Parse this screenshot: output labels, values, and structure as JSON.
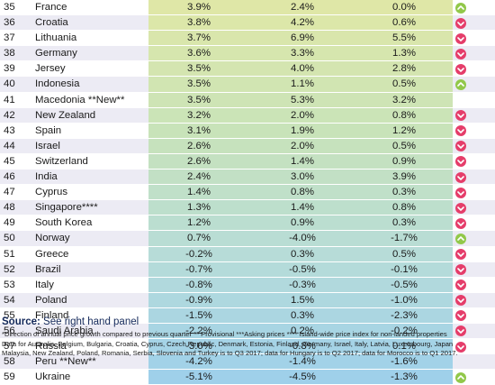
{
  "colors": {
    "up": "#92c84a",
    "down": "#e53d6a",
    "band_top": "#dfe7a7",
    "band_mid": "#c8e3b9",
    "band_low": "#b7dcd8",
    "band_bottom": "#9fd0ea"
  },
  "rows": [
    {
      "rank": "35",
      "country": "France",
      "annual": "3.9%",
      "annual_value": 3.9,
      "quarterly": "2.4%",
      "prev_year": "0.0%",
      "direction": "up"
    },
    {
      "rank": "36",
      "country": "Croatia",
      "annual": "3.8%",
      "annual_value": 3.8,
      "quarterly": "4.2%",
      "prev_year": "0.6%",
      "direction": "down"
    },
    {
      "rank": "37",
      "country": "Lithuania",
      "annual": "3.7%",
      "annual_value": 3.7,
      "quarterly": "6.9%",
      "prev_year": "5.5%",
      "direction": "down"
    },
    {
      "rank": "38",
      "country": "Germany",
      "annual": "3.6%",
      "annual_value": 3.6,
      "quarterly": "3.3%",
      "prev_year": "1.3%",
      "direction": "down"
    },
    {
      "rank": "39",
      "country": "Jersey",
      "annual": "3.5%",
      "annual_value": 3.5,
      "quarterly": "4.0%",
      "prev_year": "2.8%",
      "direction": "down"
    },
    {
      "rank": "40",
      "country": "Indonesia",
      "annual": "3.5%",
      "annual_value": 3.5,
      "quarterly": "1.1%",
      "prev_year": "0.5%",
      "direction": "up"
    },
    {
      "rank": "41",
      "country": "Macedonia **New**",
      "annual": "3.5%",
      "annual_value": 3.5,
      "quarterly": "5.3%",
      "prev_year": "3.2%",
      "direction": ""
    },
    {
      "rank": "42",
      "country": "New Zealand",
      "annual": "3.2%",
      "annual_value": 3.2,
      "quarterly": "2.0%",
      "prev_year": "0.8%",
      "direction": "down"
    },
    {
      "rank": "43",
      "country": "Spain",
      "annual": "3.1%",
      "annual_value": 3.1,
      "quarterly": "1.9%",
      "prev_year": "1.2%",
      "direction": "down"
    },
    {
      "rank": "44",
      "country": "Israel",
      "annual": "2.6%",
      "annual_value": 2.6,
      "quarterly": "2.0%",
      "prev_year": "0.5%",
      "direction": "down"
    },
    {
      "rank": "45",
      "country": "Switzerland",
      "annual": "2.6%",
      "annual_value": 2.6,
      "quarterly": "1.4%",
      "prev_year": "0.9%",
      "direction": "down"
    },
    {
      "rank": "46",
      "country": "India",
      "annual": "2.4%",
      "annual_value": 2.4,
      "quarterly": "3.0%",
      "prev_year": "3.9%",
      "direction": "down"
    },
    {
      "rank": "47",
      "country": "Cyprus",
      "annual": "1.4%",
      "annual_value": 1.4,
      "quarterly": "0.8%",
      "prev_year": "0.3%",
      "direction": "down"
    },
    {
      "rank": "48",
      "country": "Singapore****",
      "annual": "1.3%",
      "annual_value": 1.3,
      "quarterly": "1.4%",
      "prev_year": "0.8%",
      "direction": "down"
    },
    {
      "rank": "49",
      "country": "South Korea",
      "annual": "1.2%",
      "annual_value": 1.2,
      "quarterly": "0.9%",
      "prev_year": "0.3%",
      "direction": "down"
    },
    {
      "rank": "50",
      "country": "Norway",
      "annual": "0.7%",
      "annual_value": 0.7,
      "quarterly": "-4.0%",
      "prev_year": "-1.7%",
      "direction": "up"
    },
    {
      "rank": "51",
      "country": "Greece",
      "annual": "-0.2%",
      "annual_value": -0.2,
      "quarterly": "0.3%",
      "prev_year": "0.5%",
      "direction": "down"
    },
    {
      "rank": "52",
      "country": "Brazil",
      "annual": "-0.7%",
      "annual_value": -0.7,
      "quarterly": "-0.5%",
      "prev_year": "-0.1%",
      "direction": "down"
    },
    {
      "rank": "53",
      "country": "Italy",
      "annual": "-0.8%",
      "annual_value": -0.8,
      "quarterly": "-0.3%",
      "prev_year": "-0.5%",
      "direction": "down"
    },
    {
      "rank": "54",
      "country": "Poland",
      "annual": "-0.9%",
      "annual_value": -0.9,
      "quarterly": "1.5%",
      "prev_year": "-1.0%",
      "direction": "down"
    },
    {
      "rank": "55",
      "country": "Finland",
      "annual": "-1.5%",
      "annual_value": -1.5,
      "quarterly": "0.3%",
      "prev_year": "-2.3%",
      "direction": "down"
    },
    {
      "rank": "56",
      "country": "Saudi Arabia",
      "annual": "-2.2%",
      "annual_value": -2.2,
      "quarterly": "0.2%",
      "prev_year": "-0.2%",
      "direction": "down"
    },
    {
      "rank": "57",
      "country": "Russia",
      "annual": "-3.0%",
      "annual_value": -3.0,
      "quarterly": "-0.8%",
      "prev_year": "0.1%",
      "direction": "down"
    },
    {
      "rank": "58",
      "country": "Peru **New**",
      "annual": "-4.2%",
      "annual_value": -4.2,
      "quarterly": "-1.4%",
      "prev_year": "-1.6%",
      "direction": ""
    },
    {
      "rank": "59",
      "country": "Ukraine",
      "annual": "-5.1%",
      "annual_value": -5.1,
      "quarterly": "-4.5%",
      "prev_year": "-1.3%",
      "direction": "up"
    }
  ],
  "source": {
    "label": "Source:",
    "text": "See right hand panel"
  },
  "footnotes": [
    "*Direction of annual price growth compared to previous quarter  ** Provisional ***Asking prices **** Island-wide price index for non-landed properties",
    "Data for Australia, Belgium, Bulgaria, Croatia, Cyprus, Czech Republic, Denmark, Estonia, Finland, Germany, Israel, Italy, Latvia, Luxembourg, Japan",
    "Malaysia, New Zealand, Poland, Romania, Serbia, Slovenia and Turkey is to Q3 2017; data for Hungary is to Q2 2017; data for Morocco is to Q1 2017."
  ]
}
